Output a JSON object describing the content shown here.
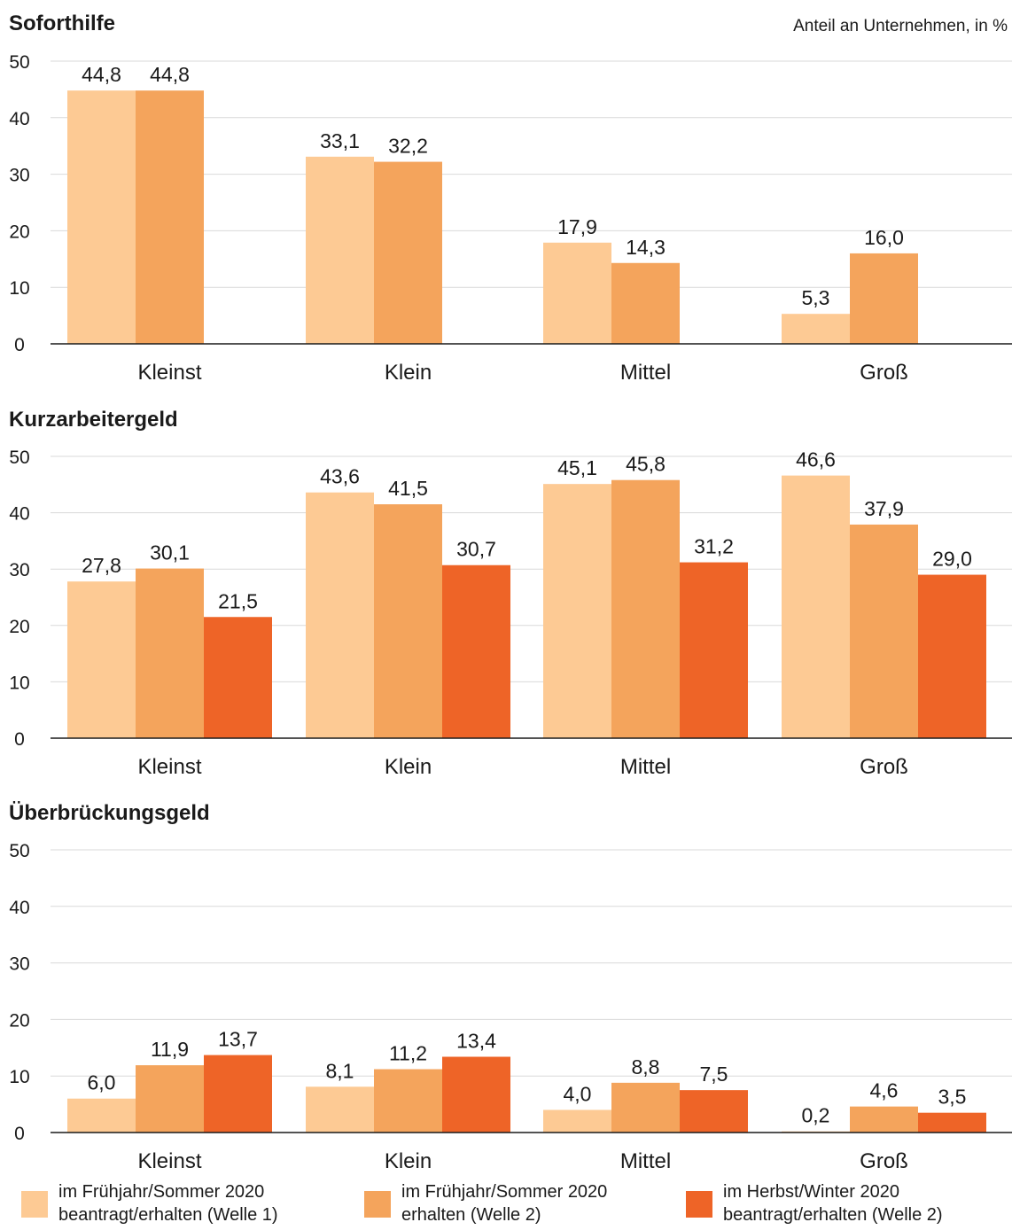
{
  "unit_label": "Anteil an Unternehmen, in %",
  "colors": {
    "welle1": "#fdca94",
    "welle2_erhalten": "#f4a45c",
    "welle2_herbst": "#ee6427",
    "grid": "#d9d9d9",
    "axis": "#1a1a1a"
  },
  "chart_data": [
    {
      "type": "bar",
      "title": "Soforthilfe",
      "categories": [
        "Kleinst",
        "Klein",
        "Mittel",
        "Groß"
      ],
      "ylim": [
        0,
        50
      ],
      "yticks": [
        "0",
        "10",
        "20",
        "30",
        "40",
        "50"
      ],
      "grid": true,
      "series": [
        {
          "name": "im Frühjahr/Sommer 2020 beantragt/erhalten (Welle 1)",
          "values": [
            44.8,
            33.1,
            17.9,
            5.3
          ],
          "labels": [
            "44,8",
            "33,1",
            "17,9",
            "5,3"
          ]
        },
        {
          "name": "im Frühjahr/Sommer 2020 erhalten (Welle 2)",
          "values": [
            44.8,
            32.2,
            14.3,
            16.0
          ],
          "labels": [
            "44,8",
            "32,2",
            "14,3",
            "16,0"
          ]
        }
      ]
    },
    {
      "type": "bar",
      "title": "Kurzarbeitergeld",
      "categories": [
        "Kleinst",
        "Klein",
        "Mittel",
        "Groß"
      ],
      "ylim": [
        0,
        50
      ],
      "yticks": [
        "0",
        "10",
        "20",
        "30",
        "40",
        "50"
      ],
      "grid": true,
      "series": [
        {
          "name": "im Frühjahr/Sommer 2020 beantragt/erhalten (Welle 1)",
          "values": [
            27.8,
            43.6,
            45.1,
            46.6
          ],
          "labels": [
            "27,8",
            "43,6",
            "45,1",
            "46,6"
          ]
        },
        {
          "name": "im Frühjahr/Sommer 2020 erhalten (Welle 2)",
          "values": [
            30.1,
            41.5,
            45.8,
            37.9
          ],
          "labels": [
            "30,1",
            "41,5",
            "45,8",
            "37,9"
          ]
        },
        {
          "name": "im Herbst/Winter 2020 beantragt/erhalten (Welle 2)",
          "values": [
            21.5,
            30.7,
            31.2,
            29.0
          ],
          "labels": [
            "21,5",
            "30,7",
            "31,2",
            "29,0"
          ]
        }
      ]
    },
    {
      "type": "bar",
      "title": "Überbrückungsgeld",
      "categories": [
        "Kleinst",
        "Klein",
        "Mittel",
        "Groß"
      ],
      "ylim": [
        0,
        50
      ],
      "yticks": [
        "0",
        "10",
        "20",
        "30",
        "40",
        "50"
      ],
      "grid": true,
      "series": [
        {
          "name": "im Frühjahr/Sommer 2020 beantragt/erhalten (Welle 1)",
          "values": [
            6.0,
            8.1,
            4.0,
            0.2
          ],
          "labels": [
            "6,0",
            "8,1",
            "4,0",
            "0,2"
          ]
        },
        {
          "name": "im Frühjahr/Sommer 2020 erhalten (Welle 2)",
          "values": [
            11.9,
            11.2,
            8.8,
            4.6
          ],
          "labels": [
            "11,9",
            "11,2",
            "8,8",
            "4,6"
          ]
        },
        {
          "name": "im Herbst/Winter 2020 beantragt/erhalten (Welle 2)",
          "values": [
            13.7,
            13.4,
            7.5,
            3.5
          ],
          "labels": [
            "13,7",
            "13,4",
            "7,5",
            "3,5"
          ]
        }
      ]
    }
  ],
  "legend": [
    {
      "line1": "im Frühjahr/Sommer 2020",
      "line2": "beantragt/erhalten (Welle 1)",
      "color": "#fdca94"
    },
    {
      "line1": "im Frühjahr/Sommer 2020",
      "line2": "erhalten (Welle 2)",
      "color": "#f4a45c"
    },
    {
      "line1": "im Herbst/Winter 2020",
      "line2": "beantragt/erhalten (Welle 2)",
      "color": "#ee6427"
    }
  ]
}
